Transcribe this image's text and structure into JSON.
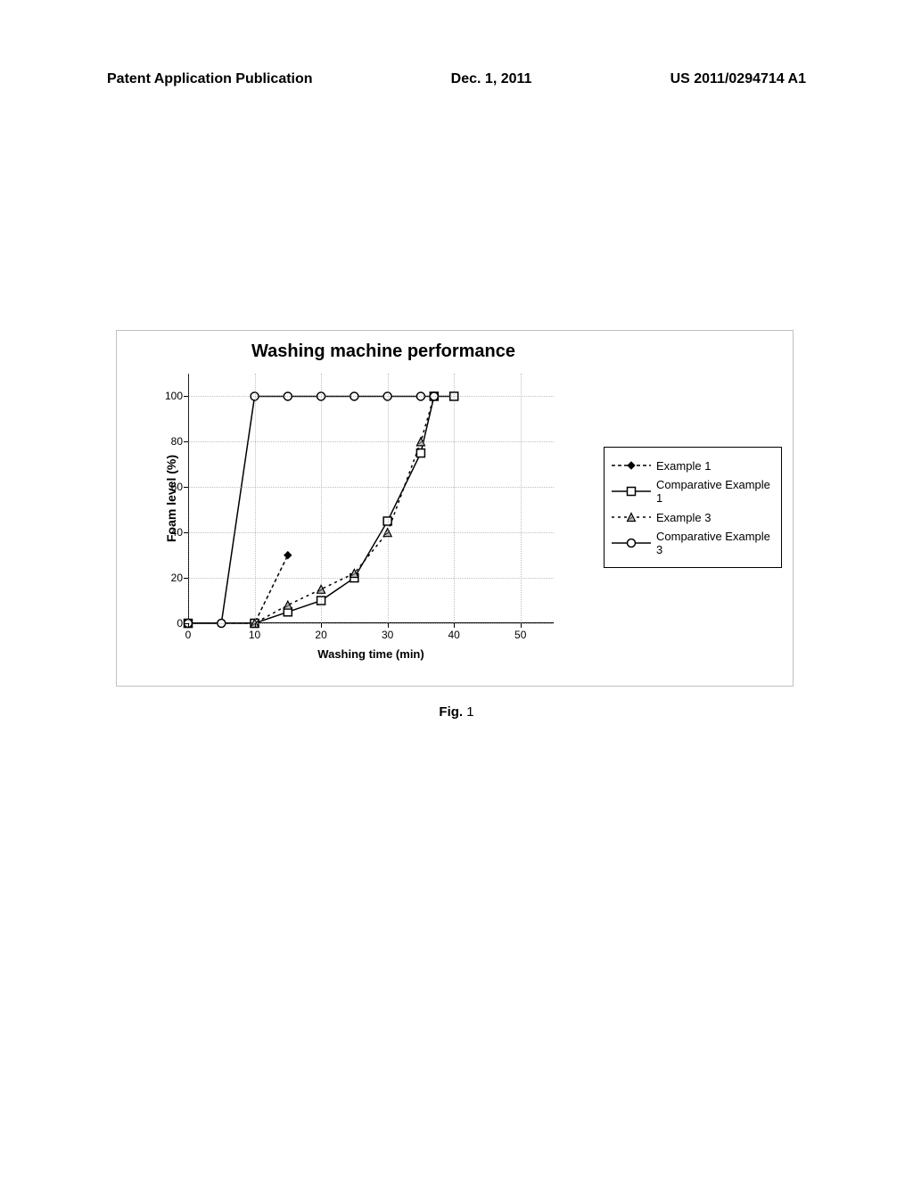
{
  "header": {
    "left": "Patent Application Publication",
    "center": "Dec. 1, 2011",
    "right": "US 2011/0294714 A1"
  },
  "figure_caption_prefix": "Fig.",
  "figure_number": "1",
  "chart": {
    "type": "line",
    "title": "Washing machine performance",
    "title_fontsize": 20,
    "xlabel": "Washing time (min)",
    "ylabel": "Foam level (%)",
    "label_fontsize": 13,
    "xlim": [
      0,
      55
    ],
    "ylim": [
      0,
      110
    ],
    "xticks": [
      0,
      10,
      20,
      30,
      40,
      50
    ],
    "yticks": [
      0,
      20,
      40,
      60,
      80,
      100
    ],
    "grid_color": "#808080",
    "grid_style": "dotted",
    "background_color": "#ffffff",
    "axis_color": "#000000",
    "tick_fontsize": 12,
    "series": [
      {
        "name": "Example 1",
        "marker": "diamond-filled",
        "marker_size": 8,
        "line_dash": "4,3",
        "color": "#000000",
        "x": [
          0,
          10,
          15
        ],
        "y": [
          0,
          0,
          30
        ]
      },
      {
        "name": "Comparative Example 1",
        "marker": "square-open",
        "marker_size": 9,
        "line_dash": "none",
        "color": "#000000",
        "x": [
          0,
          10,
          15,
          20,
          25,
          30,
          35,
          37,
          40
        ],
        "y": [
          0,
          0,
          5,
          10,
          20,
          45,
          75,
          100,
          100
        ]
      },
      {
        "name": "Example 3",
        "marker": "triangle-hatched",
        "marker_size": 9,
        "line_dash": "3,4",
        "color": "#000000",
        "x": [
          0,
          10,
          15,
          20,
          25,
          30,
          35,
          37
        ],
        "y": [
          0,
          0,
          8,
          15,
          22,
          40,
          80,
          100
        ]
      },
      {
        "name": "Comparative Example 3",
        "marker": "circle-open",
        "marker_size": 9,
        "line_dash": "none",
        "color": "#000000",
        "x": [
          0,
          5,
          10,
          15,
          20,
          25,
          30,
          35,
          37
        ],
        "y": [
          0,
          0,
          100,
          100,
          100,
          100,
          100,
          100,
          100
        ]
      }
    ],
    "legend": {
      "position": "right",
      "border_color": "#000000",
      "fontsize": 13
    }
  }
}
